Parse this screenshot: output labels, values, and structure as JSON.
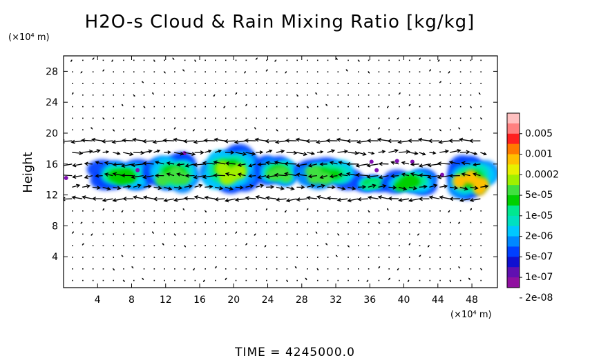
{
  "chart_data": {
    "type": "heatmap",
    "title": "H2O-s Cloud & Rain Mixing Ratio [kg/kg]",
    "ylabel": "Height",
    "x_unit": "(×10⁴ m)",
    "y_unit": "(×10⁴ m)",
    "xlim": [
      0,
      51
    ],
    "ylim": [
      0,
      30
    ],
    "x_ticks": [
      4,
      8,
      12,
      16,
      20,
      24,
      28,
      32,
      36,
      40,
      44,
      48
    ],
    "y_ticks": [
      4,
      8,
      12,
      16,
      20,
      24,
      28
    ],
    "colorbar": {
      "labels": [
        "0.005",
        "0.001",
        "0.0002",
        "5e-05",
        "1e-05",
        "2e-06",
        "5e-07",
        "1e-07",
        "2e-08"
      ],
      "colors": [
        "#ffc0c0",
        "#ff8080",
        "#ff2020",
        "#ff7a00",
        "#ffc000",
        "#e8f000",
        "#a0f000",
        "#40e040",
        "#00d000",
        "#00e890",
        "#00e0c0",
        "#00c8ff",
        "#0088ff",
        "#0040ff",
        "#1010d0",
        "#6010b0",
        "#9010a0"
      ]
    },
    "cloud_regions": [
      {
        "x": [
          3.5,
          10
        ],
        "y": [
          12.5,
          16.5
        ],
        "level": 8
      },
      {
        "x": [
          10,
          16
        ],
        "y": [
          12,
          17.5
        ],
        "level": 7
      },
      {
        "x": [
          16,
          23
        ],
        "y": [
          12,
          18.5
        ],
        "level": 6
      },
      {
        "x": [
          23,
          27.5
        ],
        "y": [
          13,
          17
        ],
        "level": 7
      },
      {
        "x": [
          27.5,
          34.5
        ],
        "y": [
          12.5,
          17
        ],
        "level": 7
      },
      {
        "x": [
          34.5,
          38
        ],
        "y": [
          12.5,
          14.5
        ],
        "level": 9
      },
      {
        "x": [
          38,
          43.5
        ],
        "y": [
          12,
          15.5
        ],
        "level": 8
      },
      {
        "x": [
          45,
          51
        ],
        "y": [
          11,
          17
        ],
        "level": 4
      }
    ],
    "wind_field": "shear: westward flow near 19 and 15, eastward flow near 17 and 13, weak flow elsewhere",
    "footer": "TIME  =  4245000.0"
  }
}
